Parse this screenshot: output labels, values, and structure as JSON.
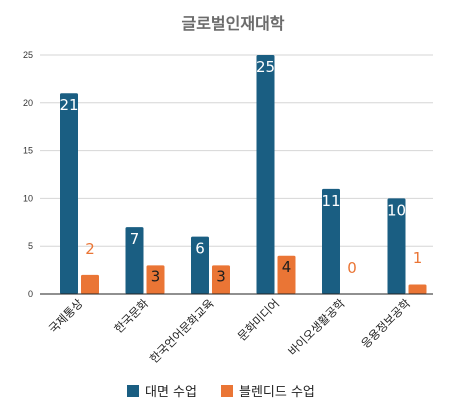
{
  "chart_data": {
    "type": "bar",
    "title": "글로벌인재대학",
    "categories": [
      "국제통상",
      "한국문화",
      "한국언어문화교육",
      "문화미디어",
      "바이오생활공학",
      "응용정보공학"
    ],
    "series": [
      {
        "name": "대면 수업",
        "values": [
          21,
          7,
          6,
          25,
          11,
          10
        ],
        "color": "#1a5e82",
        "label_color": "#ffffff"
      },
      {
        "name": "블렌디드 수업",
        "values": [
          2,
          3,
          3,
          4,
          0,
          1
        ],
        "color": "#ea7535",
        "label_color": "#ea7535"
      }
    ],
    "ylim": [
      0,
      25
    ],
    "yticks": [
      0,
      5,
      10,
      15,
      20,
      25
    ],
    "grid": true,
    "legend_position": "bottom",
    "xlabel": "",
    "ylabel": ""
  }
}
